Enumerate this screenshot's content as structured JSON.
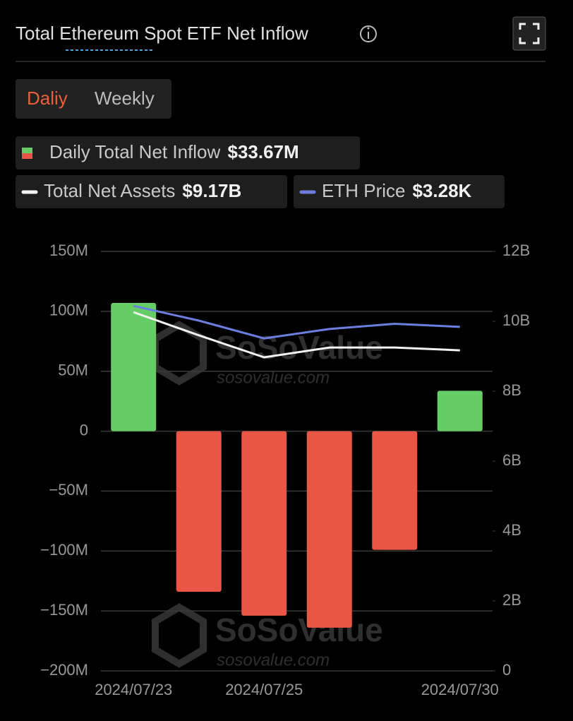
{
  "title": "Total Ethereum Spot ETF Net Inflow",
  "tabs": [
    "Daliy",
    "Weekly"
  ],
  "watermark": {
    "brand": "SoSoValue",
    "url": "sosovalue.com"
  },
  "chart_data": {
    "type": "combo",
    "categories": [
      "2024/07/23",
      null,
      "2024/07/25",
      null,
      null,
      "2024/07/30"
    ],
    "series": [
      {
        "name": "Daily Total Net Inflow",
        "type": "bar",
        "axis": "y",
        "colors": {
          "positive": "#66cd66",
          "negative": "#ea5646"
        },
        "values": [
          107,
          -134,
          -154,
          -164,
          -99,
          33.67
        ],
        "latest": {
          "value": 33.67,
          "label": "$33.67M"
        }
      },
      {
        "name": "Total Net Assets",
        "type": "line",
        "axis": "y2",
        "color": "#f2f2f2",
        "values": [
          10.26,
          9.6,
          8.97,
          9.25,
          9.25,
          9.17
        ],
        "latest": {
          "value": 9.17,
          "label": "$9.17B"
        }
      },
      {
        "name": "ETH Price",
        "type": "line",
        "axis": "y3",
        "color": "#6b7fe0",
        "values": [
          3480,
          3340,
          3170,
          3260,
          3310,
          3280
        ],
        "latest": {
          "value": 3280,
          "label": "$3.28K"
        }
      }
    ],
    "ylim": [
      -200,
      150
    ],
    "yticks": [
      {
        "value": -200,
        "label": "−200M"
      },
      {
        "value": -150,
        "label": "−150M"
      },
      {
        "value": -100,
        "label": "−100M"
      },
      {
        "value": -50,
        "label": "−50M"
      },
      0,
      {
        "value": 50,
        "label": "50M"
      },
      {
        "value": 100,
        "label": "100M"
      },
      {
        "value": 150,
        "label": "150M"
      }
    ],
    "y2lim": [
      0,
      12
    ],
    "y2ticks": [
      0,
      {
        "value": 2,
        "label": "2B"
      },
      {
        "value": 4,
        "label": "4B"
      },
      {
        "value": 6,
        "label": "6B"
      },
      {
        "value": 8,
        "label": "8B"
      },
      {
        "value": 10,
        "label": "10B"
      },
      {
        "value": 12,
        "label": "12B"
      }
    ],
    "y3lim": [
      0,
      4000
    ],
    "grid": true
  }
}
